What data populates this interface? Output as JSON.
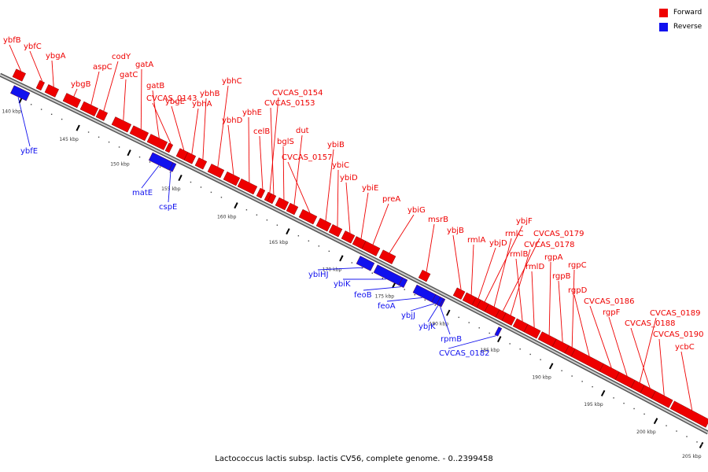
{
  "caption": "Lactococcus lactis subsp. lactis CV56, complete genome. - 0..2399458",
  "legend": [
    {
      "label": "Forward",
      "color": "#ee0000"
    },
    {
      "label": "Reverse",
      "color": "#1111ee"
    }
  ],
  "colors": {
    "forward": "#ee0000",
    "reverse": "#1111ee",
    "backbone": "#888888"
  },
  "ticks": [
    "140 kbp",
    "145 kbp",
    "150 kbp",
    "155 kbp",
    "160 kbp",
    "165 kbp",
    "170 kbp",
    "175 kbp",
    "180 kbp",
    "185 kbp",
    "190 kbp",
    "195 kbp",
    "200 kbp",
    "205 kbp"
  ],
  "genes_forward": [
    "ybfB",
    "ybfC",
    "ybgA",
    "ybgB",
    "aspC",
    "codY",
    "gatC",
    "gatA",
    "gatB",
    "CVCAS_0143",
    "ybgE",
    "ybhA",
    "ybhB",
    "ybhC",
    "ybhD",
    "ybhE",
    "celB",
    "CVCAS_0154",
    "CVCAS_0153",
    "bglS",
    "dut",
    "CVCAS_0157",
    "ybiB",
    "ybiC",
    "ybiD",
    "ybiE",
    "preA",
    "ybiG",
    "msrB",
    "ybjB",
    "rmlA",
    "ybjD",
    "ybjF",
    "rmlC",
    "CVCAS_0179",
    "CVCAS_0178",
    "rmlB",
    "rmlD",
    "rgpA",
    "rgpB",
    "rgpC",
    "rgpD",
    "CVCAS_0186",
    "rgpF",
    "CVCAS_0189",
    "CVCAS_0188",
    "CVCAS_0190",
    "ycbC"
  ],
  "genes_reverse": [
    "ybfE",
    "matE",
    "cspE",
    "ybiHJ",
    "ybiK",
    "feoB",
    "feoA",
    "ybjJ",
    "ybjK",
    "rpmB",
    "CVCAS_0182"
  ]
}
